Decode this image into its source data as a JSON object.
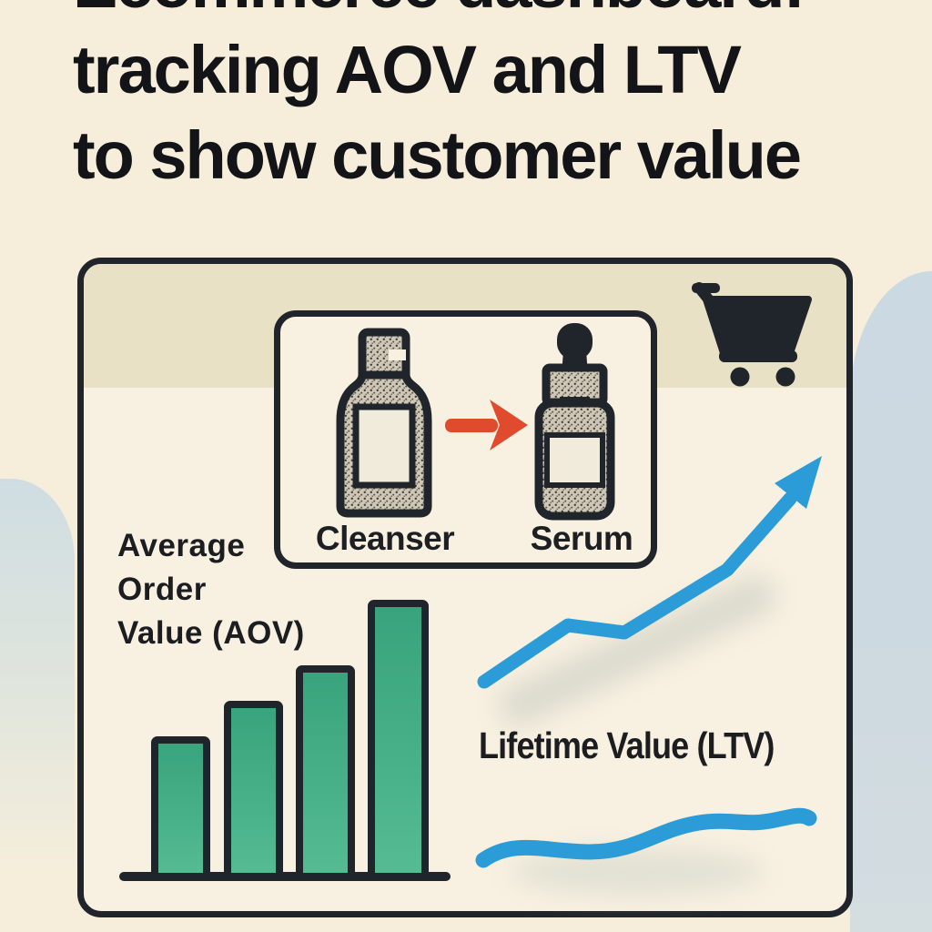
{
  "title": {
    "line1": "Ecommerce dashboard:",
    "line2": "tracking AOV and LTV",
    "line3": "to show customer value"
  },
  "dashboard_panel": {
    "product_upsell_box": {
      "cleanser_label": "Cleanser",
      "serum_label": "Serum",
      "arrow_icon": "right-arrow-icon"
    },
    "cart_icon": "shopping-cart-icon",
    "aov_label_lines": [
      "Average",
      "Order",
      "Value (AOV)"
    ],
    "ltv_label": "Lifetime Value (LTV)"
  },
  "chart_data": [
    {
      "type": "bar",
      "title": "Average Order Value (AOV)",
      "categories": [
        "bar-1",
        "bar-2",
        "bar-3",
        "bar-4"
      ],
      "values": [
        0.5,
        0.63,
        0.76,
        1.0
      ],
      "ylim": [
        0,
        1
      ],
      "xlabel": "",
      "ylabel": "",
      "grid": false,
      "bar_color": "#3fae87",
      "note": "unlabeled illustrative bars; values are relative heights above a plain black baseline"
    },
    {
      "type": "line",
      "title": "Lifetime Value (LTV)",
      "x": [
        0,
        1,
        2,
        3,
        4
      ],
      "values": [
        0,
        0.26,
        0.23,
        0.52,
        1.0
      ],
      "line_color": "#2b9cd7",
      "note": "upward zig-zag trend line ending in an arrowhead"
    },
    {
      "type": "line",
      "title": "LTV wave underline",
      "x": [
        0,
        1,
        2,
        3
      ],
      "values": [
        0,
        0.08,
        0.3,
        0.33
      ],
      "line_color": "#2b9cd7",
      "note": "gently rising wavy stroke beneath the LTV label"
    }
  ],
  "colors": {
    "background": "#f6eedb",
    "panel_background": "#f8f1e1",
    "panel_band": "#e8e1c6",
    "ink": "#20252b",
    "text": "#131417",
    "bar_green": "#3fae87",
    "trend_blue": "#2b9cd7",
    "upsell_red": "#e04b2e",
    "blob_blue": "#cbd9e2",
    "bottle_label": "#f1ebdb"
  }
}
